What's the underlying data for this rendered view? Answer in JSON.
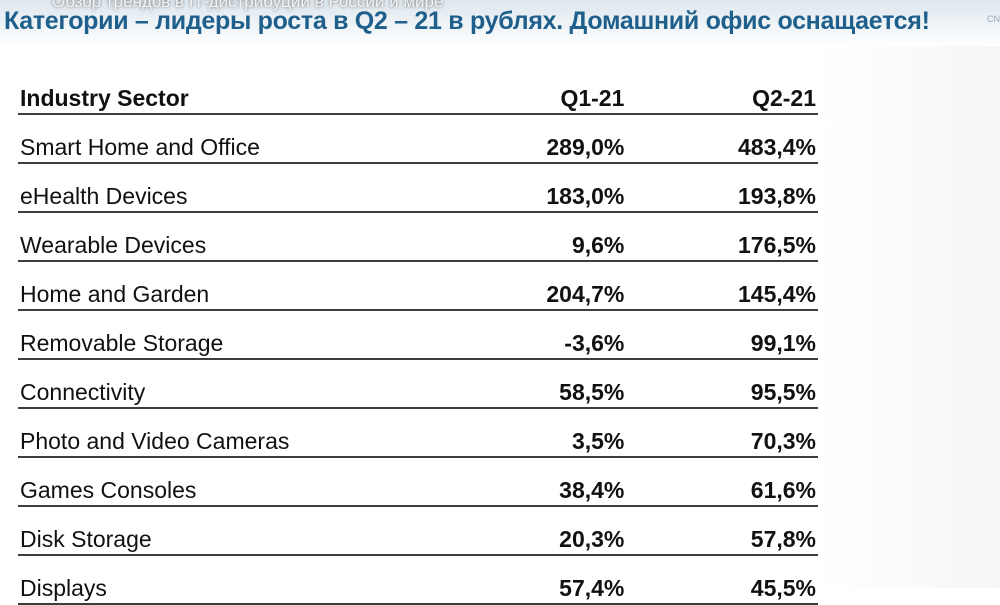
{
  "video": {
    "title": "Обзор трендов в IT-дистрибуции в России и мире"
  },
  "slide": {
    "heading": "Категории – лидеры роста в Q2 – 21 в рублях. Домашний офис оснащается!",
    "corner_mark": "CN"
  },
  "table": {
    "headers": {
      "sector": "Industry Sector",
      "q1": "Q1-21",
      "q2": "Q2-21"
    },
    "rows": [
      {
        "sector": "Smart Home and Office",
        "q1": "289,0%",
        "q2": "483,4%"
      },
      {
        "sector": "eHealth Devices",
        "q1": "183,0%",
        "q2": "193,8%"
      },
      {
        "sector": "Wearable Devices",
        "q1": "9,6%",
        "q2": "176,5%"
      },
      {
        "sector": "Home and Garden",
        "q1": "204,7%",
        "q2": "145,4%"
      },
      {
        "sector": "Removable Storage",
        "q1": "-3,6%",
        "q2": "99,1%"
      },
      {
        "sector": "Connectivity",
        "q1": "58,5%",
        "q2": "95,5%"
      },
      {
        "sector": "Photo and Video Cameras",
        "q1": "3,5%",
        "q2": "70,3%"
      },
      {
        "sector": "Games Consoles",
        "q1": "38,4%",
        "q2": "61,6%"
      },
      {
        "sector": "Disk Storage",
        "q1": "20,3%",
        "q2": "57,8%"
      },
      {
        "sector": "Displays",
        "q1": "57,4%",
        "q2": "45,5%"
      }
    ]
  },
  "colors": {
    "heading": "#1f5f8c",
    "q2_values": "#1e9a4c",
    "text": "#111111"
  }
}
